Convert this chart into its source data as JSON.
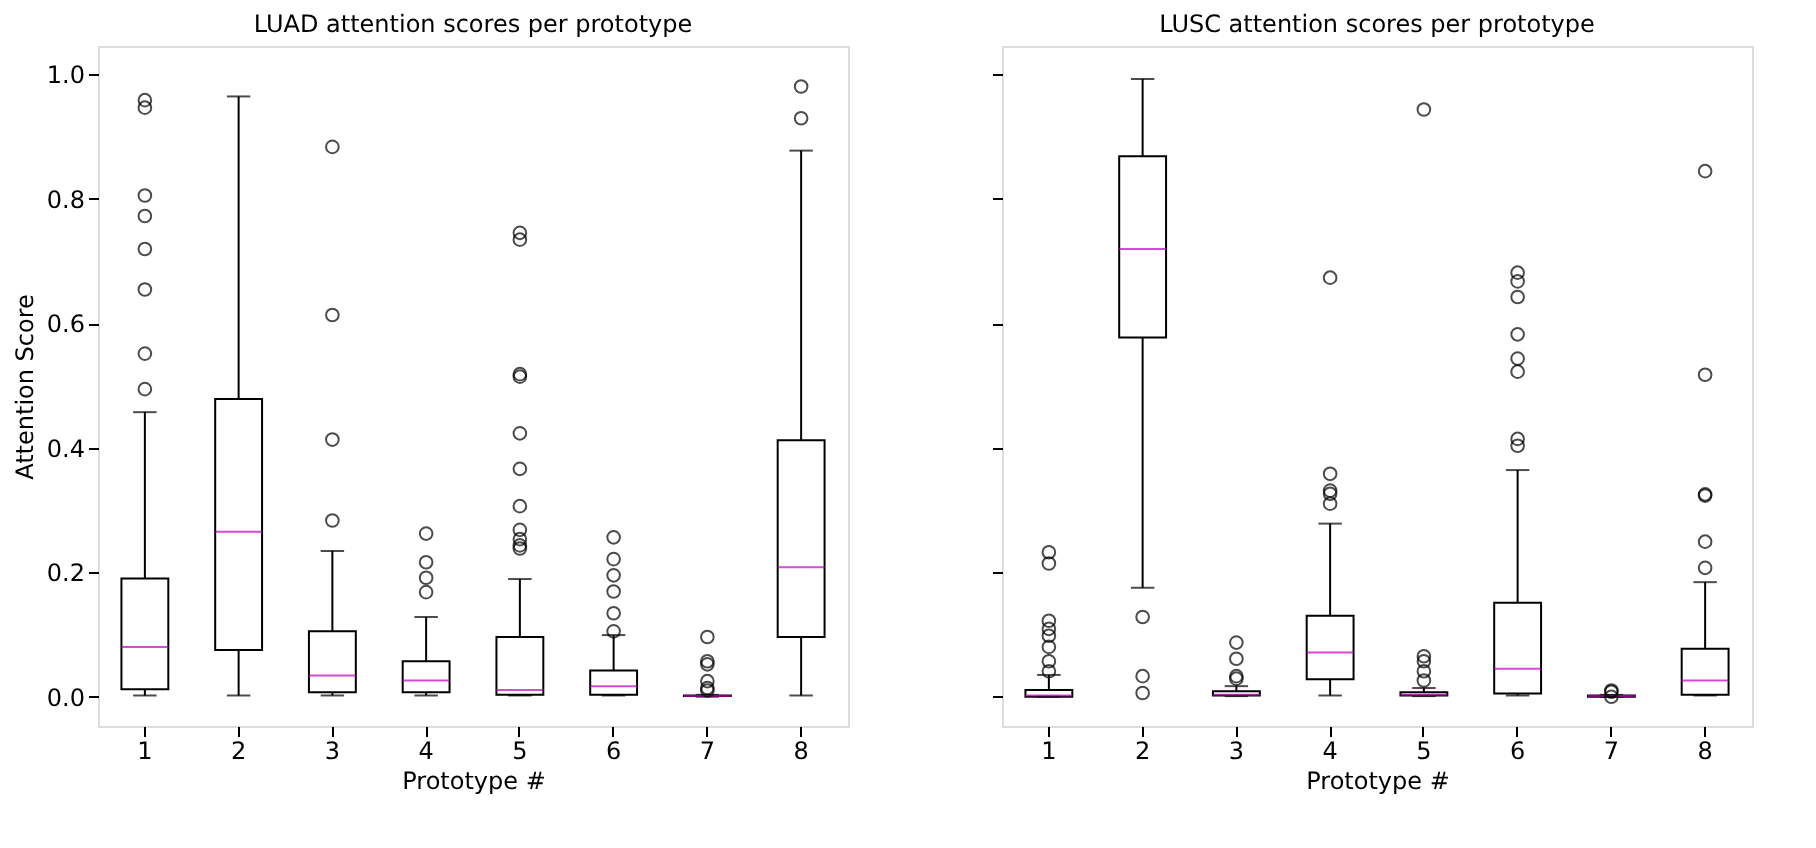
{
  "chart_data": [
    {
      "type": "box",
      "title": "LUAD attention scores per prototype",
      "xlabel": "Prototype #",
      "ylabel": "Attention Score",
      "categories": [
        "1",
        "2",
        "3",
        "4",
        "5",
        "6",
        "7",
        "8"
      ],
      "ylim": [
        -0.047,
        1.045
      ],
      "yticks": [
        {
          "value": 0,
          "label": "0.0"
        },
        {
          "value": 0.2,
          "label": "0.2"
        },
        {
          "value": 0.4,
          "label": "0.4"
        },
        {
          "value": 0.6,
          "label": "0.6"
        },
        {
          "value": 0.8,
          "label": "0.8"
        },
        {
          "value": 1,
          "label": "1.0"
        }
      ],
      "grid": false,
      "series": [
        {
          "color": "#000000",
          "boxes": [
            {
              "low": 0.002,
              "q1": 0.012,
              "median": 0.08,
              "q3": 0.19,
              "high": 0.457,
              "outliers": [
                0.494,
                0.551,
                0.654,
                0.719,
                0.772,
                0.805,
                0.946,
                0.958
              ]
            },
            {
              "low": 0.002,
              "q1": 0.075,
              "median": 0.265,
              "q3": 0.478,
              "high": 0.964
            },
            {
              "low": 0.002,
              "q1": 0.007,
              "median": 0.034,
              "q3": 0.105,
              "high": 0.234,
              "outliers": [
                0.283,
                0.413,
                0.613,
                0.883
              ]
            },
            {
              "low": 0.002,
              "q1": 0.007,
              "median": 0.026,
              "q3": 0.057,
              "high": 0.128,
              "outliers": [
                0.168,
                0.191,
                0.216,
                0.262
              ]
            },
            {
              "low": 0.002,
              "q1": 0.003,
              "median": 0.011,
              "q3": 0.096,
              "high": 0.189,
              "outliers": [
                0.238,
                0.243,
                0.253,
                0.268,
                0.306,
                0.366,
                0.423,
                0.514,
                0.518,
                0.734,
                0.745
              ]
            },
            {
              "low": 0.002,
              "q1": 0.003,
              "median": 0.017,
              "q3": 0.042,
              "high": 0.099,
              "outliers": [
                0.105,
                0.134,
                0.169,
                0.195,
                0.221,
                0.256
              ]
            },
            {
              "low": 0.0,
              "q1": 0.001,
              "median": 0.001,
              "q3": 0.002,
              "high": 0.003,
              "outliers": [
                0.01,
                0.014,
                0.025,
                0.052,
                0.057,
                0.096
              ]
            },
            {
              "low": 0.002,
              "q1": 0.096,
              "median": 0.208,
              "q3": 0.412,
              "high": 0.877,
              "outliers": [
                0.929,
                0.98
              ]
            }
          ]
        }
      ]
    },
    {
      "type": "box",
      "title": "LUSC attention scores per prototype",
      "xlabel": "Prototype #",
      "categories": [
        "1",
        "2",
        "3",
        "4",
        "5",
        "6",
        "7",
        "8"
      ],
      "ylim": [
        -0.047,
        1.045
      ],
      "yticks": [
        {
          "value": 0,
          "label": null
        },
        {
          "value": 0.2,
          "label": null
        },
        {
          "value": 0.4,
          "label": null
        },
        {
          "value": 0.6,
          "label": null
        },
        {
          "value": 0.8,
          "label": null
        },
        {
          "value": 1,
          "label": null
        }
      ],
      "tick_labels": "x",
      "grid": false,
      "series": [
        {
          "color": "#000000",
          "boxes": [
            {
              "low": 0.0,
              "q1": 0.0,
              "median": 0.002,
              "q3": 0.011,
              "high": 0.035,
              "outliers": [
                0.041,
                0.057,
                0.08,
                0.098,
                0.109,
                0.122,
                0.214,
                0.232
              ]
            },
            {
              "low": 0.175,
              "q1": 0.577,
              "median": 0.719,
              "q3": 0.868,
              "high": 0.992,
              "outliers": [
                0.006,
                0.033,
                0.128
              ]
            },
            {
              "low": 0.001,
              "q1": 0.002,
              "median": 0.003,
              "q3": 0.009,
              "high": 0.017,
              "outliers": [
                0.029,
                0.033,
                0.061,
                0.087
              ]
            },
            {
              "low": 0.002,
              "q1": 0.028,
              "median": 0.071,
              "q3": 0.13,
              "high": 0.278,
              "outliers": [
                0.31,
                0.326,
                0.331,
                0.358,
                0.673
              ]
            },
            {
              "low": 0.001,
              "q1": 0.002,
              "median": 0.003,
              "q3": 0.007,
              "high": 0.014,
              "outliers": [
                0.026,
                0.041,
                0.057,
                0.065,
                0.943
              ]
            },
            {
              "low": 0.002,
              "q1": 0.005,
              "median": 0.045,
              "q3": 0.151,
              "high": 0.364,
              "outliers": [
                0.403,
                0.414,
                0.522,
                0.543,
                0.582,
                0.642,
                0.667,
                0.681
              ]
            },
            {
              "low": 0.0,
              "q1": 0.0,
              "median": 0.001,
              "q3": 0.002,
              "high": 0.003,
              "outliers": [
                0.0,
                0.008,
                0.01
              ]
            },
            {
              "low": 0.002,
              "q1": 0.003,
              "median": 0.026,
              "q3": 0.077,
              "high": 0.184,
              "outliers": [
                0.207,
                0.249,
                0.323,
                0.325,
                0.517,
                0.844
              ]
            }
          ]
        }
      ]
    }
  ]
}
